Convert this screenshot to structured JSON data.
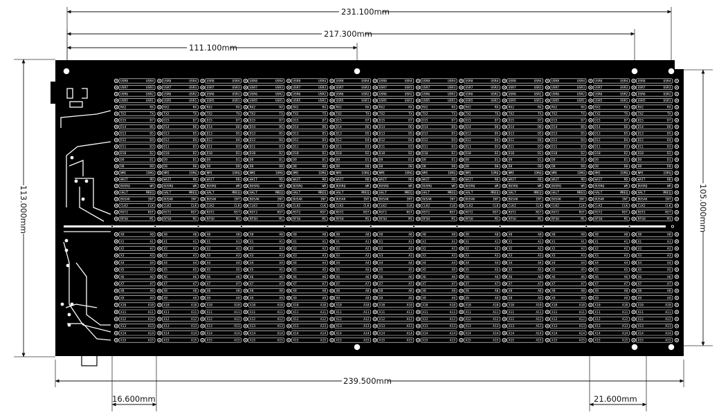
{
  "dimensions": {
    "top_overall": "231.100mm",
    "top_holes": "217.300mm",
    "top_mid": "111.100mm",
    "left_height": "113.000mm",
    "right_height": "105.000mm",
    "bottom_overall": "239.500mm",
    "bottom_left": "16.600mm",
    "bottom_right": "21.600mm"
  },
  "board": {
    "background_color": "#000000",
    "trace_color": "#ffffff",
    "upper_left_labels": [
      "USR8",
      "USR7",
      "USR6",
      "USR5",
      "RX2",
      "TX2",
      "D15",
      "D14",
      "D13",
      "D12",
      "D11",
      "D10",
      "D9",
      "D8",
      "NMI",
      "WAIT",
      "BUSRQ",
      "HALT",
      "BUSAK",
      "CLK2",
      "RST2",
      "RFSH"
    ],
    "upper_right_labels": [
      "USR4",
      "USR3",
      "USR2",
      "USR1",
      "RX",
      "TX",
      "D7",
      "D6",
      "D5",
      "D4",
      "D3",
      "D2",
      "D1",
      "D0",
      "IORQ",
      "RD",
      "WR",
      "MREQ",
      "INT",
      "CLK",
      "RST",
      "M1"
    ],
    "lower_left_labels": [
      "X0",
      "X1",
      "X2",
      "X3",
      "X4",
      "X5",
      "X6",
      "X7",
      "X8",
      "X9",
      "X10",
      "X11",
      "X12",
      "X13",
      "X14",
      "X15"
    ],
    "lower_right_labels": [
      "A0",
      "A1",
      "A2",
      "A3",
      "A4",
      "A5",
      "A6",
      "A7",
      "A8",
      "A9",
      "A10",
      "A11",
      "A12",
      "A13",
      "A14",
      "A15"
    ],
    "slot_count": 13
  }
}
